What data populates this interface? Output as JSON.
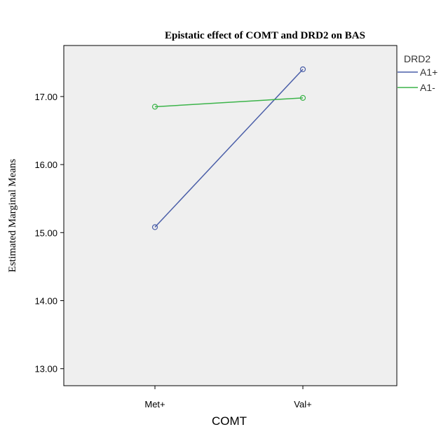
{
  "chart_data": {
    "type": "line",
    "title": "Epistatic effect of COMT and DRD2 on BAS",
    "xlabel": "COMT",
    "ylabel": "Estimated Marginal Means",
    "categories": [
      "Met+",
      "Val+"
    ],
    "ylim": [
      12.75,
      17.75
    ],
    "yticks": [
      13.0,
      14.0,
      15.0,
      16.0,
      17.0
    ],
    "ytick_labels": [
      "13.00",
      "14.00",
      "15.00",
      "16.00",
      "17.00"
    ],
    "legend_title": "DRD2",
    "legend_position": "right",
    "grid": false,
    "plot_background": "#efefef",
    "series": [
      {
        "name": "A1+",
        "color": "#4a5ea8",
        "values": [
          15.08,
          17.4
        ]
      },
      {
        "name": "A1-",
        "color": "#3cb44a",
        "values": [
          16.85,
          16.98
        ]
      }
    ]
  }
}
